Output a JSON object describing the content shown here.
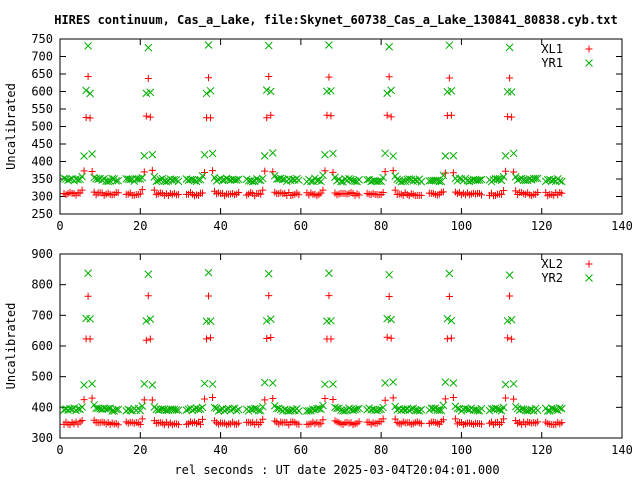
{
  "title": "HIRES continuum, Cas_a_Lake, file:Skynet_60738_Cas_a_Lake_130841_80838.cyb.txt",
  "xlabel": "rel seconds : UT date 2025-03-04T20:04:01.000",
  "colors": {
    "red": "#ff0000",
    "green": "#00b000"
  },
  "chart_data": [
    {
      "type": "scatter",
      "title": "",
      "xlabel": "",
      "ylabel": "Uncalibrated",
      "xlim": [
        0,
        140
      ],
      "ylim": [
        250,
        750
      ],
      "xticks": [
        0,
        20,
        40,
        60,
        80,
        100,
        120,
        140
      ],
      "yticks": [
        250,
        300,
        350,
        400,
        450,
        500,
        550,
        600,
        650,
        700,
        750
      ],
      "grid": false,
      "legend": "top-right",
      "series": [
        {
          "name": "XL1",
          "color": "#ff0000",
          "marker": "plus",
          "baseline": 307,
          "peak": 640,
          "scan_starts": [
            0,
            15.5,
            30.5,
            45.5,
            60.5,
            75.5,
            91,
            106,
            120
          ],
          "peak_positions": [
            7,
            22,
            37,
            52,
            67,
            82,
            97,
            112
          ],
          "x_end": 125
        },
        {
          "name": "YR1",
          "color": "#00b000",
          "marker": "cross",
          "baseline": 347,
          "peak": 728,
          "scan_starts": [
            0,
            15.5,
            30.5,
            45.5,
            60.5,
            75.5,
            91,
            106,
            120
          ],
          "peak_positions": [
            7,
            22,
            37,
            52,
            67,
            82,
            97,
            112
          ],
          "x_end": 125
        }
      ]
    },
    {
      "type": "scatter",
      "title": "",
      "xlabel": "rel seconds : UT date 2025-03-04T20:04:01.000",
      "ylabel": "Uncalibrated",
      "xlim": [
        0,
        140
      ],
      "ylim": [
        300,
        900
      ],
      "xticks": [
        0,
        20,
        40,
        60,
        80,
        100,
        120,
        140
      ],
      "yticks": [
        300,
        400,
        500,
        600,
        700,
        800,
        900
      ],
      "grid": false,
      "legend": "top-right",
      "series": [
        {
          "name": "XL2",
          "color": "#ff0000",
          "marker": "plus",
          "baseline": 348,
          "peak": 765,
          "scan_starts": [
            0,
            15.5,
            30.5,
            45.5,
            60.5,
            75.5,
            91,
            106,
            120
          ],
          "peak_positions": [
            7,
            22,
            37,
            52,
            67,
            82,
            97,
            112
          ],
          "x_end": 125
        },
        {
          "name": "YR2",
          "color": "#00b000",
          "marker": "cross",
          "baseline": 393,
          "peak": 835,
          "scan_starts": [
            0,
            15.5,
            30.5,
            45.5,
            60.5,
            75.5,
            91,
            106,
            120
          ],
          "peak_positions": [
            7,
            22,
            37,
            52,
            67,
            82,
            97,
            112
          ],
          "x_end": 125
        }
      ]
    }
  ]
}
